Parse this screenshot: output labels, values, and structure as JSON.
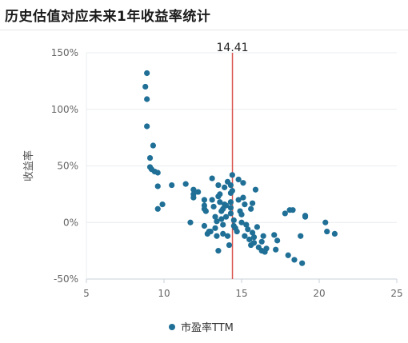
{
  "header": {
    "title": "历史估值对应未来1年收益率统计"
  },
  "chart_data": {
    "type": "scatter",
    "title": "历史估值对应未来1年收益率统计",
    "xlabel": "",
    "ylabel": "收益率",
    "xlim": [
      5,
      25
    ],
    "ylim": [
      -50,
      150
    ],
    "x_ticks": [
      "5",
      "10",
      "15",
      "20",
      "25"
    ],
    "y_ticks": [
      "150%",
      "100%",
      "50%",
      "0%",
      "-50%"
    ],
    "grid": "horizontal",
    "legend_position": "bottom",
    "current_marker": {
      "x": 14.41,
      "label": "14.41",
      "color": "#d9534f"
    },
    "series": [
      {
        "name": "市盈率TTM",
        "color": "#1f6f96",
        "points": [
          [
            8.9,
            132
          ],
          [
            8.8,
            120
          ],
          [
            8.9,
            109
          ],
          [
            8.9,
            85
          ],
          [
            9.3,
            68
          ],
          [
            9.1,
            57
          ],
          [
            9.1,
            49
          ],
          [
            9.2,
            47
          ],
          [
            9.4,
            45
          ],
          [
            9.6,
            44
          ],
          [
            9.6,
            32
          ],
          [
            9.6,
            12
          ],
          [
            9.9,
            16
          ],
          [
            10.5,
            33
          ],
          [
            11.4,
            34
          ],
          [
            11.9,
            29
          ],
          [
            11.9,
            22
          ],
          [
            11.9,
            25
          ],
          [
            12.2,
            27
          ],
          [
            11.7,
            0
          ],
          [
            12.6,
            20
          ],
          [
            12.6,
            15
          ],
          [
            12.6,
            12
          ],
          [
            12.7,
            10
          ],
          [
            12.6,
            -3
          ],
          [
            12.8,
            -10
          ],
          [
            13.0,
            -8
          ],
          [
            13.1,
            39
          ],
          [
            13.1,
            20
          ],
          [
            13.2,
            14
          ],
          [
            13.3,
            5
          ],
          [
            13.3,
            -5
          ],
          [
            13.4,
            -12
          ],
          [
            13.4,
            1
          ],
          [
            13.5,
            33
          ],
          [
            13.5,
            23
          ],
          [
            13.6,
            25
          ],
          [
            13.6,
            18
          ],
          [
            13.7,
            10
          ],
          [
            13.7,
            3
          ],
          [
            13.8,
            -2
          ],
          [
            13.8,
            -10
          ],
          [
            13.9,
            31
          ],
          [
            13.9,
            16
          ],
          [
            14.0,
            15
          ],
          [
            14.0,
            5
          ],
          [
            14.1,
            -12
          ],
          [
            14.1,
            36
          ],
          [
            14.3,
            33
          ],
          [
            14.3,
            26
          ],
          [
            14.3,
            18
          ],
          [
            14.3,
            13
          ],
          [
            14.3,
            8
          ],
          [
            14.4,
            42
          ],
          [
            14.4,
            28
          ],
          [
            14.5,
            2
          ],
          [
            14.5,
            -3
          ],
          [
            14.6,
            -5
          ],
          [
            14.7,
            -8
          ],
          [
            14.8,
            38
          ],
          [
            14.8,
            20
          ],
          [
            14.9,
            10
          ],
          [
            15.0,
            7
          ],
          [
            15.0,
            0
          ],
          [
            15.1,
            35
          ],
          [
            15.1,
            22
          ],
          [
            15.2,
            16
          ],
          [
            15.2,
            -12
          ],
          [
            15.3,
            -2
          ],
          [
            15.4,
            -6
          ],
          [
            15.5,
            -15
          ],
          [
            15.6,
            12
          ],
          [
            15.6,
            -20
          ],
          [
            15.7,
            17
          ],
          [
            15.7,
            -9
          ],
          [
            15.8,
            -13
          ],
          [
            15.9,
            29
          ],
          [
            16.0,
            -4
          ],
          [
            16.1,
            -22
          ],
          [
            16.3,
            -17
          ],
          [
            16.3,
            -25
          ],
          [
            16.5,
            -26
          ],
          [
            16.4,
            -12
          ],
          [
            17.1,
            -11
          ],
          [
            17.2,
            -24
          ],
          [
            17.3,
            -16
          ],
          [
            17.8,
            8
          ],
          [
            18.0,
            -29
          ],
          [
            18.1,
            11
          ],
          [
            18.4,
            -33
          ],
          [
            18.3,
            11
          ],
          [
            18.8,
            -12
          ],
          [
            18.9,
            -36
          ],
          [
            19.1,
            6
          ],
          [
            19.1,
            5
          ],
          [
            20.4,
            0
          ],
          [
            20.5,
            -8
          ],
          [
            21.0,
            -10
          ],
          [
            13.5,
            -25
          ],
          [
            14.2,
            -20
          ],
          [
            12.9,
            -8
          ],
          [
            13.8,
            12
          ],
          [
            15.8,
            -18
          ],
          [
            16.6,
            -23
          ]
        ]
      }
    ]
  }
}
